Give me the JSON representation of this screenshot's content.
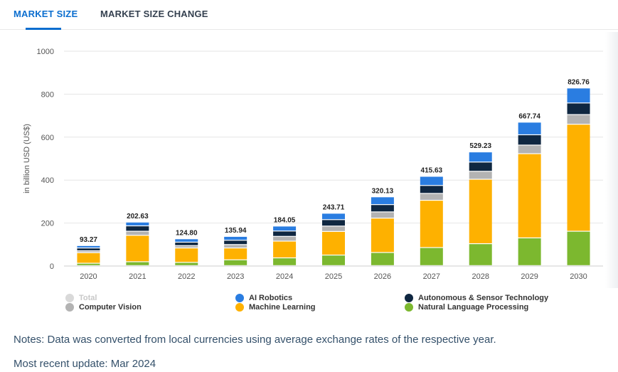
{
  "tabs": [
    {
      "label": "MARKET SIZE",
      "active": true
    },
    {
      "label": "MARKET SIZE CHANGE",
      "active": false
    }
  ],
  "chart_data": {
    "type": "bar",
    "stacked": true,
    "ylabel": "in billion USD (US$)",
    "ylim": [
      0,
      1000
    ],
    "yticks": [
      0,
      200,
      400,
      600,
      800,
      1000
    ],
    "categories": [
      "2020",
      "2021",
      "2022",
      "2023",
      "2024",
      "2025",
      "2026",
      "2027",
      "2028",
      "2029",
      "2030"
    ],
    "totals": [
      "93.27",
      "202.63",
      "124.80",
      "135.94",
      "184.05",
      "243.71",
      "320.13",
      "415.63",
      "529.23",
      "667.74",
      "826.76"
    ],
    "series": [
      {
        "name": "Natural Language Processing",
        "color": "#7cb82f",
        "values": [
          11,
          18,
          15,
          27,
          36,
          49,
          61,
          84,
          102,
          129,
          160
        ]
      },
      {
        "name": "Machine Learning",
        "color": "#feb100",
        "values": [
          49,
          123,
          67,
          55,
          78,
          110,
          160,
          220,
          300,
          392,
          498
        ]
      },
      {
        "name": "Computer Vision",
        "color": "#b3b3b3",
        "values": [
          9,
          19,
          11,
          16,
          22,
          25,
          29,
          32,
          37,
          40,
          45
        ]
      },
      {
        "name": "Autonomous & Sensor Technology",
        "color": "#0f2741",
        "values": [
          13,
          25,
          16,
          20,
          25,
          30,
          34,
          37,
          43,
          48,
          54
        ]
      },
      {
        "name": "AI Robotics",
        "color": "#2a7de1",
        "values": [
          11.27,
          17.63,
          15.8,
          17.94,
          23.05,
          29.71,
          36.13,
          42.63,
          47.23,
          58.74,
          69.76
        ]
      }
    ],
    "grid": true,
    "legend_position": "bottom"
  },
  "legend": {
    "items": [
      {
        "label": "Total",
        "color": "#d9d9d9",
        "disabled": true
      },
      {
        "label": "AI Robotics",
        "color": "#2a7de1"
      },
      {
        "label": "Autonomous & Sensor Technology",
        "color": "#0f2741"
      },
      {
        "label": "Computer Vision",
        "color": "#b3b3b3"
      },
      {
        "label": "Machine Learning",
        "color": "#feb100"
      },
      {
        "label": "Natural Language Processing",
        "color": "#7cb82f"
      }
    ]
  },
  "notes": {
    "text": "Notes: Data was converted from local currencies using average exchange rates of the respective year.",
    "update": "Most recent update: Mar 2024"
  }
}
